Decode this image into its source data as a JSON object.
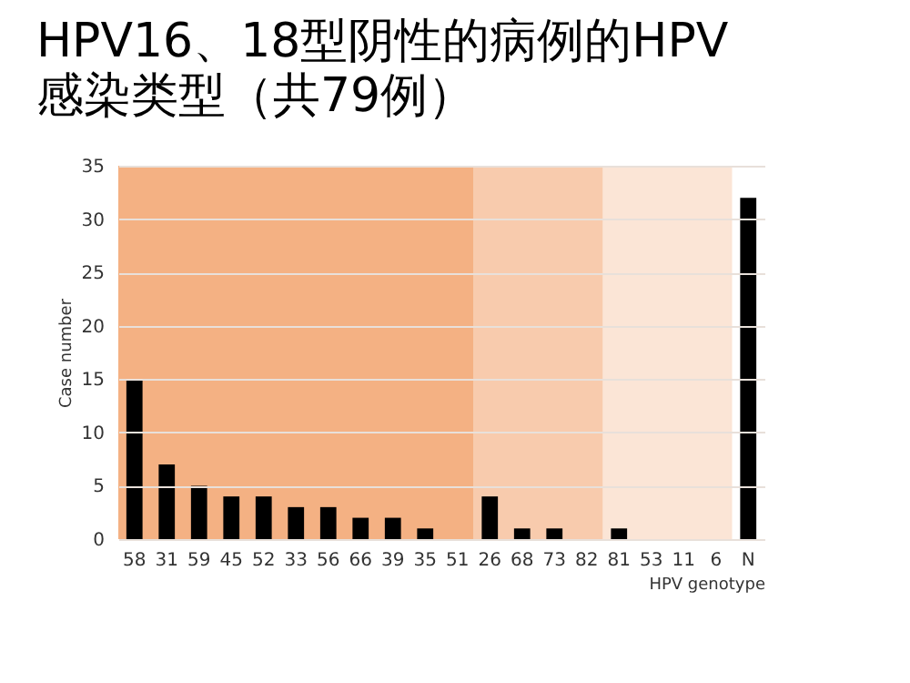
{
  "chart_data": {
    "type": "bar",
    "title": "HPV16、18型阴性的病例的HPV\n感染类型（共79例）",
    "xlabel": "HPV genotype",
    "ylabel": "Case number",
    "categories": [
      "58",
      "31",
      "59",
      "45",
      "52",
      "33",
      "56",
      "66",
      "39",
      "35",
      "51",
      "26",
      "68",
      "73",
      "82",
      "81",
      "53",
      "11",
      "6",
      "N"
    ],
    "values": [
      15,
      7,
      5,
      4,
      4,
      3,
      3,
      2,
      2,
      1,
      0,
      4,
      1,
      1,
      0,
      1,
      0,
      0,
      0,
      32
    ],
    "color": "#000000",
    "ylim": [
      0,
      35
    ],
    "yticks": [
      0,
      5,
      10,
      15,
      20,
      25,
      30,
      35
    ],
    "grid": "y",
    "bands": [
      {
        "axis": "x",
        "from": "58",
        "to": "51",
        "color": "#f4b183"
      },
      {
        "axis": "x",
        "from": "26",
        "to": "82",
        "color": "#f8cbad"
      },
      {
        "axis": "x",
        "from": "81",
        "to": "6",
        "color": "#fbe5d6"
      }
    ]
  }
}
